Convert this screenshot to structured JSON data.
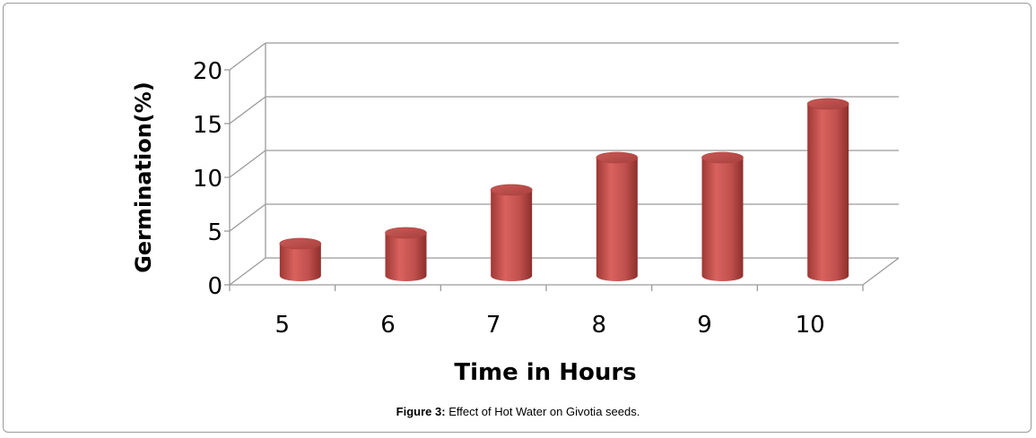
{
  "chart_data": {
    "type": "bar",
    "style": "3d-cylinder",
    "categories": [
      "5",
      "6",
      "7",
      "8",
      "9",
      "10"
    ],
    "values": [
      3,
      4,
      8,
      11,
      11,
      16
    ],
    "xlabel": "Time in Hours",
    "ylabel": "Germination(%)",
    "ylim": [
      0,
      20
    ],
    "yticks": [
      "0",
      "5",
      "10",
      "15",
      "20"
    ],
    "grid": true,
    "legend": "none",
    "colors": {
      "bar": "#c0504d",
      "bar_light": "#e0807d",
      "bar_dark": "#8c2f2c",
      "grid": "#9a9a9a"
    }
  },
  "caption": {
    "label": "Figure 3:",
    "text": "Effect of Hot Water on Givotia seeds."
  }
}
